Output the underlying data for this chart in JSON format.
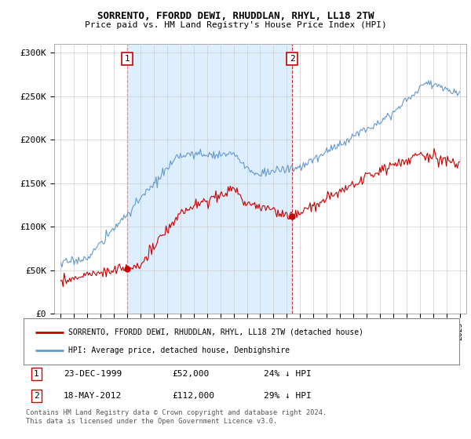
{
  "title1": "SORRENTO, FFORDD DEWI, RHUDDLAN, RHYL, LL18 2TW",
  "title2": "Price paid vs. HM Land Registry's House Price Index (HPI)",
  "ylabel_ticks": [
    "£0",
    "£50K",
    "£100K",
    "£150K",
    "£200K",
    "£250K",
    "£300K"
  ],
  "ytick_values": [
    0,
    50000,
    100000,
    150000,
    200000,
    250000,
    300000
  ],
  "ylim": [
    0,
    310000
  ],
  "xlim_start": 1994.5,
  "xlim_end": 2025.5,
  "red_line_color": "#cc0000",
  "blue_line_color": "#6699cc",
  "shade_color": "#ddeeff",
  "marker1_x": 2000.0,
  "marker1_y": 52000,
  "marker1_label": "1",
  "marker1_date": "23-DEC-1999",
  "marker1_price": "£52,000",
  "marker1_hpi": "24% ↓ HPI",
  "marker2_x": 2012.4,
  "marker2_y": 112000,
  "marker2_label": "2",
  "marker2_date": "18-MAY-2012",
  "marker2_price": "£112,000",
  "marker2_hpi": "29% ↓ HPI",
  "legend_line1": "SORRENTO, FFORDD DEWI, RHUDDLAN, RHYL, LL18 2TW (detached house)",
  "legend_line2": "HPI: Average price, detached house, Denbighshire",
  "footer1": "Contains HM Land Registry data © Crown copyright and database right 2024.",
  "footer2": "This data is licensed under the Open Government Licence v3.0.",
  "background_color": "#ffffff",
  "grid_color": "#cccccc"
}
